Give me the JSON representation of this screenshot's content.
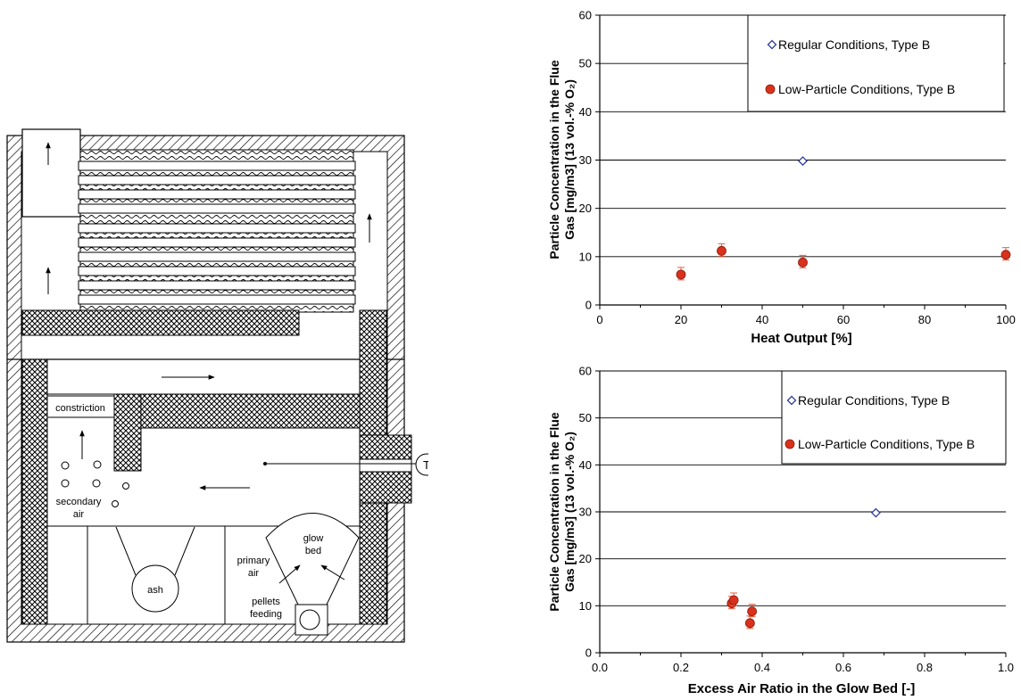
{
  "diagram": {
    "labels": {
      "constriction": "constriction",
      "secondary_air_1": "secondary",
      "secondary_air_2": "air",
      "ash": "ash",
      "glow_bed_1": "glow",
      "glow_bed_2": "bed",
      "primary_air_1": "primary",
      "primary_air_2": "air",
      "pellets_feeding_1": "pellets",
      "pellets_feeding_2": "feeding",
      "thermocouple": "T"
    }
  },
  "chart_data": [
    {
      "type": "scatter",
      "xlabel": "Heat Output [%]",
      "ylabel_line1": "Particle Concentration in the Flue",
      "ylabel_line2": "Gas [mg/m3] (13 vol.-% O₂)",
      "xlim": [
        0,
        100
      ],
      "ylim": [
        0,
        60
      ],
      "xticks": [
        "0",
        "20",
        "40",
        "60",
        "80",
        "100"
      ],
      "yticks": [
        "0",
        "10",
        "20",
        "30",
        "40",
        "50",
        "60"
      ],
      "grid": "horizontal",
      "legend_position": "top-right",
      "series": [
        {
          "name": "Regular Conditions, Type B",
          "marker": "open-diamond",
          "color": "#2e3d9c",
          "points": [
            {
              "x": 50,
              "y": 29.8
            }
          ]
        },
        {
          "name": "Low-Particle Conditions, Type B",
          "marker": "filled-circle",
          "color": "#d9311c",
          "points": [
            {
              "x": 20,
              "y": 6.3
            },
            {
              "x": 30,
              "y": 11.2
            },
            {
              "x": 50,
              "y": 8.8
            },
            {
              "x": 100,
              "y": 10.4
            }
          ]
        }
      ]
    },
    {
      "type": "scatter",
      "xlabel": "Excess Air Ratio in the Glow Bed [-]",
      "ylabel_line1": "Particle Concentration in the Flue",
      "ylabel_line2": "Gas [mg/m3] (13 vol.-% O₂)",
      "xlim": [
        0,
        1.0
      ],
      "ylim": [
        0,
        60
      ],
      "xticks": [
        "0.0",
        "0.2",
        "0.4",
        "0.6",
        "0.8",
        "1.0"
      ],
      "yticks": [
        "0",
        "10",
        "20",
        "30",
        "40",
        "50",
        "60"
      ],
      "grid": "horizontal",
      "legend_position": "top-right",
      "series": [
        {
          "name": "Regular Conditions, Type B",
          "marker": "open-diamond",
          "color": "#2e3d9c",
          "points": [
            {
              "x": 0.68,
              "y": 29.8
            }
          ]
        },
        {
          "name": "Low-Particle Conditions, Type B",
          "marker": "filled-circle",
          "color": "#d9311c",
          "points": [
            {
              "x": 0.325,
              "y": 10.5
            },
            {
              "x": 0.33,
              "y": 11.2
            },
            {
              "x": 0.37,
              "y": 6.3
            },
            {
              "x": 0.375,
              "y": 8.8
            }
          ]
        }
      ]
    }
  ]
}
